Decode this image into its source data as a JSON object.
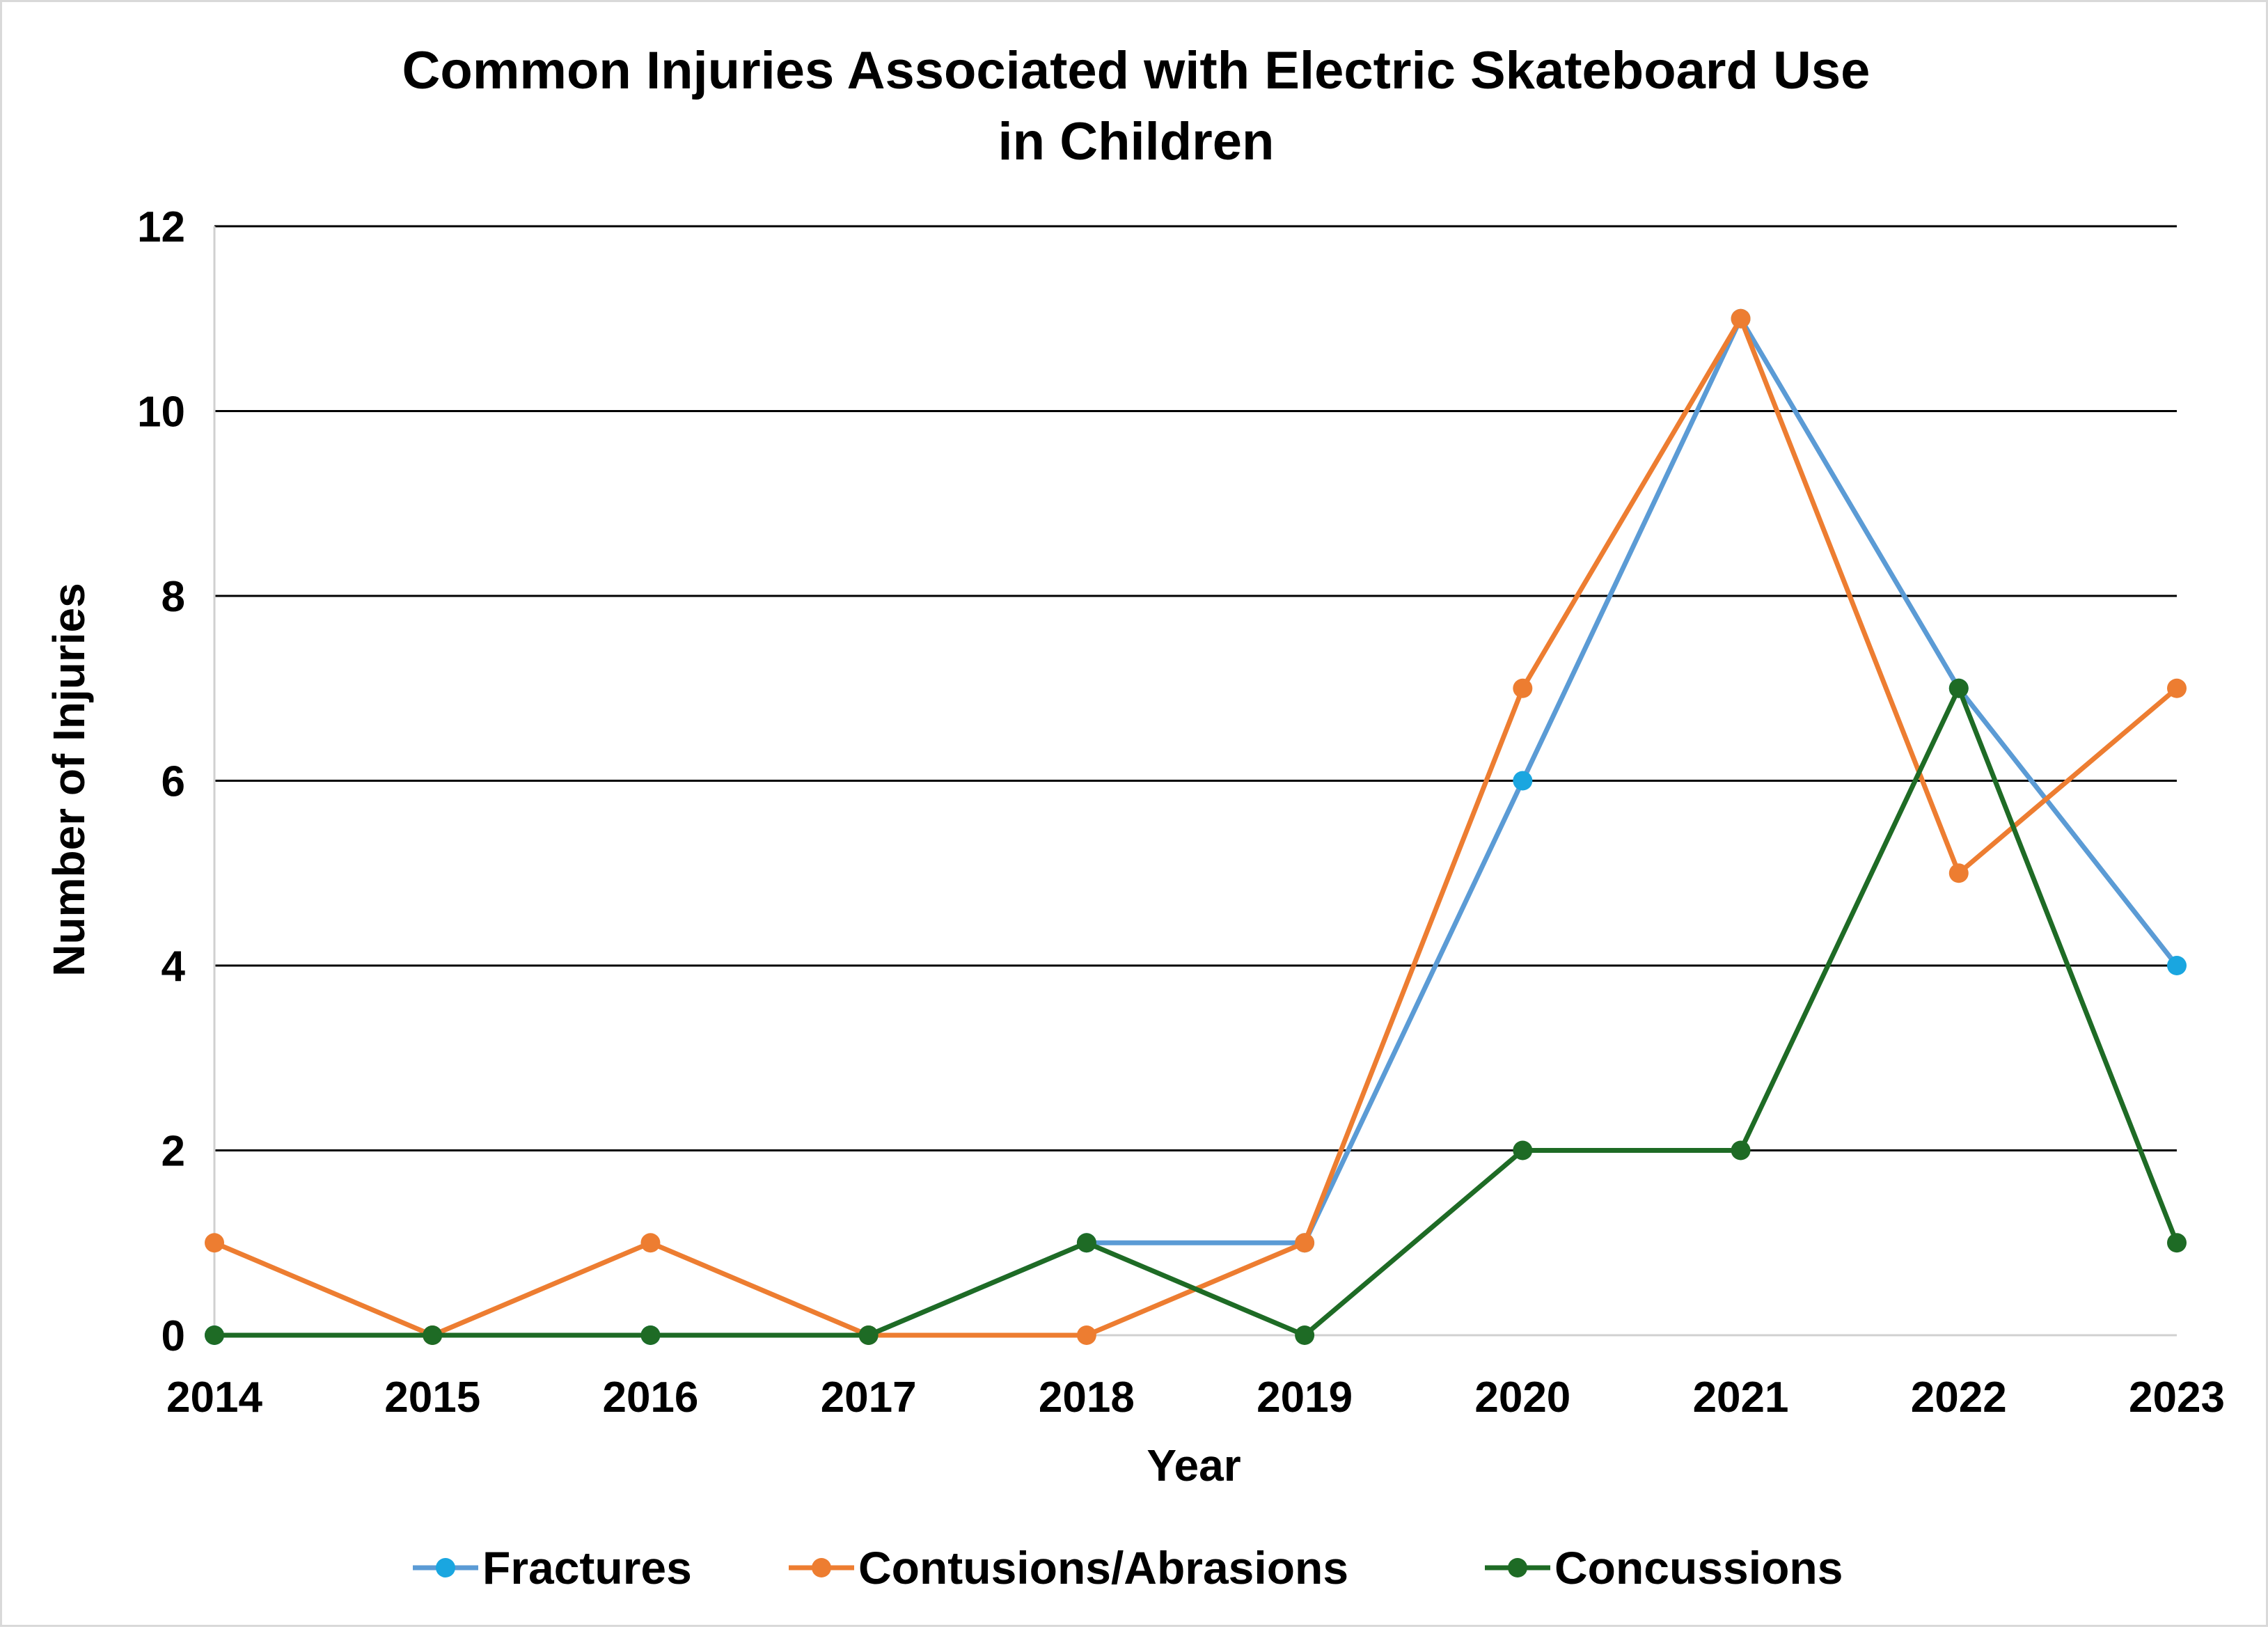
{
  "chart_data": {
    "type": "line",
    "title_lines": [
      "Common Injuries Associated with Electric Skateboard Use",
      "in Children"
    ],
    "xlabel": "Year",
    "ylabel": "Number of Injuries",
    "categories": [
      "2014",
      "2015",
      "2016",
      "2017",
      "2018",
      "2019",
      "2020",
      "2021",
      "2022",
      "2023"
    ],
    "ylim": [
      0,
      12
    ],
    "yticks": [
      0,
      2,
      4,
      6,
      8,
      10,
      12
    ],
    "grid": true,
    "legend_position": "bottom",
    "series": [
      {
        "name": "Fractures",
        "color": "#5B9BD5",
        "marker_color": "#1AA6E0",
        "values": [
          0,
          0,
          0,
          0,
          1,
          1,
          6,
          11,
          7,
          4
        ]
      },
      {
        "name": "Contusions/Abrasions",
        "color": "#ED7D31",
        "marker_color": "#ED7D31",
        "values": [
          1,
          0,
          1,
          0,
          0,
          1,
          7,
          11,
          5,
          7
        ]
      },
      {
        "name": "Concussions",
        "color": "#1E6B25",
        "marker_color": "#1E6B25",
        "values": [
          0,
          0,
          0,
          0,
          1,
          0,
          2,
          2,
          7,
          1
        ]
      }
    ]
  }
}
